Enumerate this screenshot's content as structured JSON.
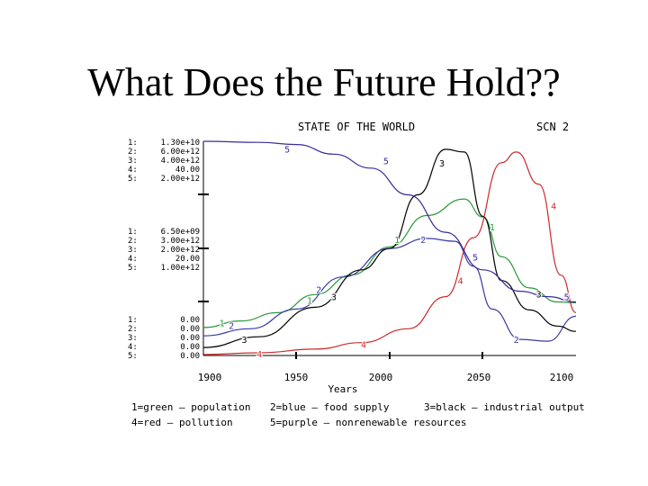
{
  "slide": {
    "title": "What Does the Future Hold??"
  },
  "chart_data": {
    "type": "line",
    "title": "STATE OF THE WORLD",
    "scenario": "SCN 2",
    "xlabel": "Years",
    "xlim": [
      1900,
      2100
    ],
    "x_ticks": [
      "1900",
      "1950",
      "2000",
      "2050",
      "2100"
    ],
    "scale_blocks": [
      {
        "labels": [
          "1:",
          "2:",
          "3:",
          "4:",
          "5:"
        ],
        "values": [
          "1.30e+10",
          "6.00e+12",
          "4.00e+12",
          "40.00",
          "2.00e+12"
        ]
      },
      {
        "labels": [
          "1:",
          "2:",
          "3:",
          "4:",
          "5:"
        ],
        "values": [
          "6.50e+09",
          "3.00e+12",
          "2.00e+12",
          "20.00",
          "1.00e+12"
        ]
      },
      {
        "labels": [
          "1:",
          "2:",
          "3:",
          "4:",
          "5:"
        ],
        "values": [
          "0.00",
          "0.00",
          "0.00",
          "0.00",
          "0.00"
        ]
      }
    ],
    "series": [
      {
        "id": "1",
        "color": "#2a9a3a",
        "scale_max": 13000000000,
        "points": [
          [
            1900,
            1700000000.0
          ],
          [
            1920,
            2100000000.0
          ],
          [
            1940,
            2600000000.0
          ],
          [
            1960,
            3700000000.0
          ],
          [
            1980,
            4900000000.0
          ],
          [
            2000,
            6600000000.0
          ],
          [
            2020,
            8500000000.0
          ],
          [
            2040,
            9500000000.0
          ],
          [
            2050,
            8400000000.0
          ],
          [
            2060,
            6000000000.0
          ],
          [
            2075,
            4100000000.0
          ],
          [
            2090,
            3250000000.0
          ],
          [
            2100,
            3200000000.0
          ]
        ]
      },
      {
        "id": "2",
        "color": "#3a3aa8",
        "scale_max": 6000000000000,
        "points": [
          [
            1900,
            550000000000.0
          ],
          [
            1925,
            750000000000.0
          ],
          [
            1950,
            1300000000000.0
          ],
          [
            1975,
            2200000000000.0
          ],
          [
            2000,
            3000000000000.0
          ],
          [
            2020,
            3280000000000.0
          ],
          [
            2035,
            3200000000000.0
          ],
          [
            2045,
            2500000000000.0
          ],
          [
            2055,
            1300000000000.0
          ],
          [
            2070,
            450000000000.0
          ],
          [
            2085,
            400000000000.0
          ],
          [
            2100,
            1100000000000.0
          ]
        ]
      },
      {
        "id": "3",
        "color": "#000000",
        "scale_max": 4000000000000,
        "points": [
          [
            1900,
            150000000000.0
          ],
          [
            1930,
            350000000000.0
          ],
          [
            1960,
            900000000000.0
          ],
          [
            1985,
            1600000000000.0
          ],
          [
            2000,
            2000000000000.0
          ],
          [
            2015,
            3000000000000.0
          ],
          [
            2030,
            3850000000000.0
          ],
          [
            2040,
            3800000000000.0
          ],
          [
            2050,
            2600000000000.0
          ],
          [
            2060,
            1400000000000.0
          ],
          [
            2075,
            850000000000.0
          ],
          [
            2090,
            550000000000.0
          ],
          [
            2100,
            450000000000.0
          ]
        ]
      },
      {
        "id": "4",
        "color": "#cc2a2a",
        "scale_max": 40,
        "points": [
          [
            1900,
            0.2
          ],
          [
            1930,
            0.5
          ],
          [
            1960,
            1.2
          ],
          [
            1985,
            2.4
          ],
          [
            2010,
            5.0
          ],
          [
            2030,
            11
          ],
          [
            2045,
            22
          ],
          [
            2060,
            36
          ],
          [
            2068,
            38
          ],
          [
            2080,
            32
          ],
          [
            2092,
            15
          ],
          [
            2100,
            8
          ]
        ]
      },
      {
        "id": "5",
        "color": "#3a2a9a",
        "scale_max": 2000000000000,
        "points": [
          [
            1900,
            2000000000000.0
          ],
          [
            1930,
            1990000000000.0
          ],
          [
            1950,
            1970000000000.0
          ],
          [
            1970,
            1880000000000.0
          ],
          [
            1990,
            1750000000000.0
          ],
          [
            2010,
            1500000000000.0
          ],
          [
            2030,
            1150000000000.0
          ],
          [
            2050,
            800000000000.0
          ],
          [
            2070,
            600000000000.0
          ],
          [
            2085,
            550000000000.0
          ],
          [
            2100,
            500000000000.0
          ]
        ]
      }
    ],
    "point_labels": [
      {
        "series": "1",
        "text": "1",
        "x": 1910,
        "y": 2000000000.0
      },
      {
        "series": "1",
        "text": "1",
        "x": 1957,
        "y": 3350000000.0
      },
      {
        "series": "1",
        "text": "1",
        "x": 2004,
        "y": 7050000000.0
      },
      {
        "series": "1",
        "text": "1",
        "x": 2055,
        "y": 7800000000.0
      },
      {
        "series": "2",
        "text": "2",
        "x": 1915,
        "y": 850000000000.0
      },
      {
        "series": "2",
        "text": "2",
        "x": 1962,
        "y": 1850000000000.0
      },
      {
        "series": "2",
        "text": "2",
        "x": 2018,
        "y": 3250000000000.0
      },
      {
        "series": "2",
        "text": "2",
        "x": 2068,
        "y": 450000000000.0
      },
      {
        "series": "3",
        "text": "3",
        "x": 1922,
        "y": 300000000000.0
      },
      {
        "series": "3",
        "text": "3",
        "x": 1970,
        "y": 1100000000000.0
      },
      {
        "series": "3",
        "text": "3",
        "x": 2028,
        "y": 3600000000000.0
      },
      {
        "series": "3",
        "text": "3",
        "x": 2080,
        "y": 1150000000000.0
      },
      {
        "series": "4",
        "text": "4",
        "x": 1930,
        "y": 0.3
      },
      {
        "series": "4",
        "text": "4",
        "x": 1986,
        "y": 2.1
      },
      {
        "series": "4",
        "text": "4",
        "x": 2038,
        "y": 14.0
      },
      {
        "series": "4",
        "text": "4",
        "x": 2088,
        "y": 28.0
      },
      {
        "series": "5",
        "text": "5",
        "x": 1945,
        "y": 1930000000000.0
      },
      {
        "series": "5",
        "text": "5",
        "x": 1998,
        "y": 1820000000000.0
      },
      {
        "series": "5",
        "text": "5",
        "x": 2046,
        "y": 920000000000.0
      },
      {
        "series": "5",
        "text": "5",
        "x": 2095,
        "y": 550000000000.0
      }
    ],
    "legend": [
      [
        "1=green  – population",
        "2=blue    – food supply",
        "3=black – industrial output"
      ],
      [
        "4=red    – pollution",
        "5=purple –  nonrenewable resources"
      ]
    ]
  }
}
